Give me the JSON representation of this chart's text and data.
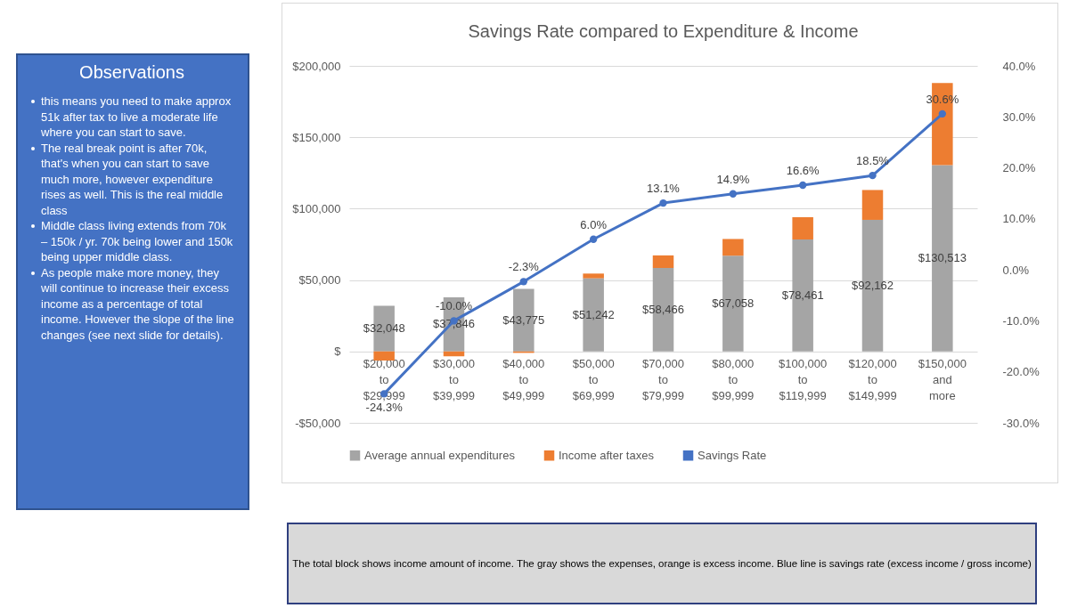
{
  "chart_data": [
    {
      "type": "other",
      "title": "Observations",
      "annotations": [
        "this means you need to make approx 51k after tax to live a moderate life where you can start to save.",
        "The real break point is after 70k, that's when you can start to save much more, however expenditure rises as well. This is the real middle class",
        "Middle class living extends from 70k – 150k / yr. 70k being lower and 150k being upper middle class.",
        "As people make more money, they will continue to increase their excess income as a percentage of total income. However the slope of the line changes (see next slide for details)."
      ]
    },
    {
      "type": "bar",
      "title": "Savings Rate compared to Expenditure & Income",
      "stacked": true,
      "categories": [
        "$20,000 to $29,999",
        "$30,000 to $39,999",
        "$40,000 to $49,999",
        "$50,000 to $69,999",
        "$70,000 to $79,999",
        "$80,000 to $99,999",
        "$100,000 to $119,999",
        "$120,000 to $149,999",
        "$150,000 and more"
      ],
      "series": [
        {
          "name": "Average annual expenditures",
          "color": "#a5a5a5",
          "values": [
            32048,
            37846,
            43775,
            51242,
            58466,
            67058,
            78461,
            92162,
            130513
          ],
          "value_labels": [
            "$32,048",
            "$37,846",
            "$43,775",
            "$51,242",
            "$58,466",
            "$67,058",
            "$78,461",
            "$92,162",
            "$130,513"
          ]
        },
        {
          "name": "Income after taxes",
          "color": "#ed7d31",
          "values": [
            -6300,
            -3400,
            -1000,
            3300,
            8800,
            11700,
            15600,
            20900,
            57500
          ]
        },
        {
          "name": "Savings Rate",
          "type": "line",
          "axis": "y2",
          "color": "#4472c4",
          "marker": "circle",
          "values": [
            -24.3,
            -10.0,
            -2.3,
            6.0,
            13.1,
            14.9,
            16.6,
            18.5,
            30.6
          ],
          "value_labels": [
            "-24.3%",
            "-10.0%",
            "-2.3%",
            "6.0%",
            "13.1%",
            "14.9%",
            "16.6%",
            "18.5%",
            "30.6%"
          ]
        }
      ],
      "ylim": [
        -50000,
        200000
      ],
      "yticks": [
        {
          "value": -50000,
          "label": "-$50,000"
        },
        {
          "value": 0,
          "label": "$"
        },
        {
          "value": 50000,
          "label": "$50,000"
        },
        {
          "value": 100000,
          "label": "$100,000"
        },
        {
          "value": 150000,
          "label": "$150,000"
        },
        {
          "value": 200000,
          "label": "$200,000"
        }
      ],
      "y2lim": [
        -30,
        40
      ],
      "y2ticks": [
        {
          "value": -30,
          "label": "-30.0%"
        },
        {
          "value": -20,
          "label": "-20.0%"
        },
        {
          "value": -10,
          "label": "-10.0%"
        },
        {
          "value": 0,
          "label": "0.0%"
        },
        {
          "value": 10,
          "label": "10.0%"
        },
        {
          "value": 20,
          "label": "20.0%"
        },
        {
          "value": 30,
          "label": "30.0%"
        },
        {
          "value": 40,
          "label": "40.0%"
        }
      ],
      "grid": "y",
      "legend": "bottom",
      "annotations": [
        "The total block shows income amount of income. The gray shows the expenses, orange is excess income. Blue line is savings rate (excess income / gross income)"
      ]
    }
  ]
}
